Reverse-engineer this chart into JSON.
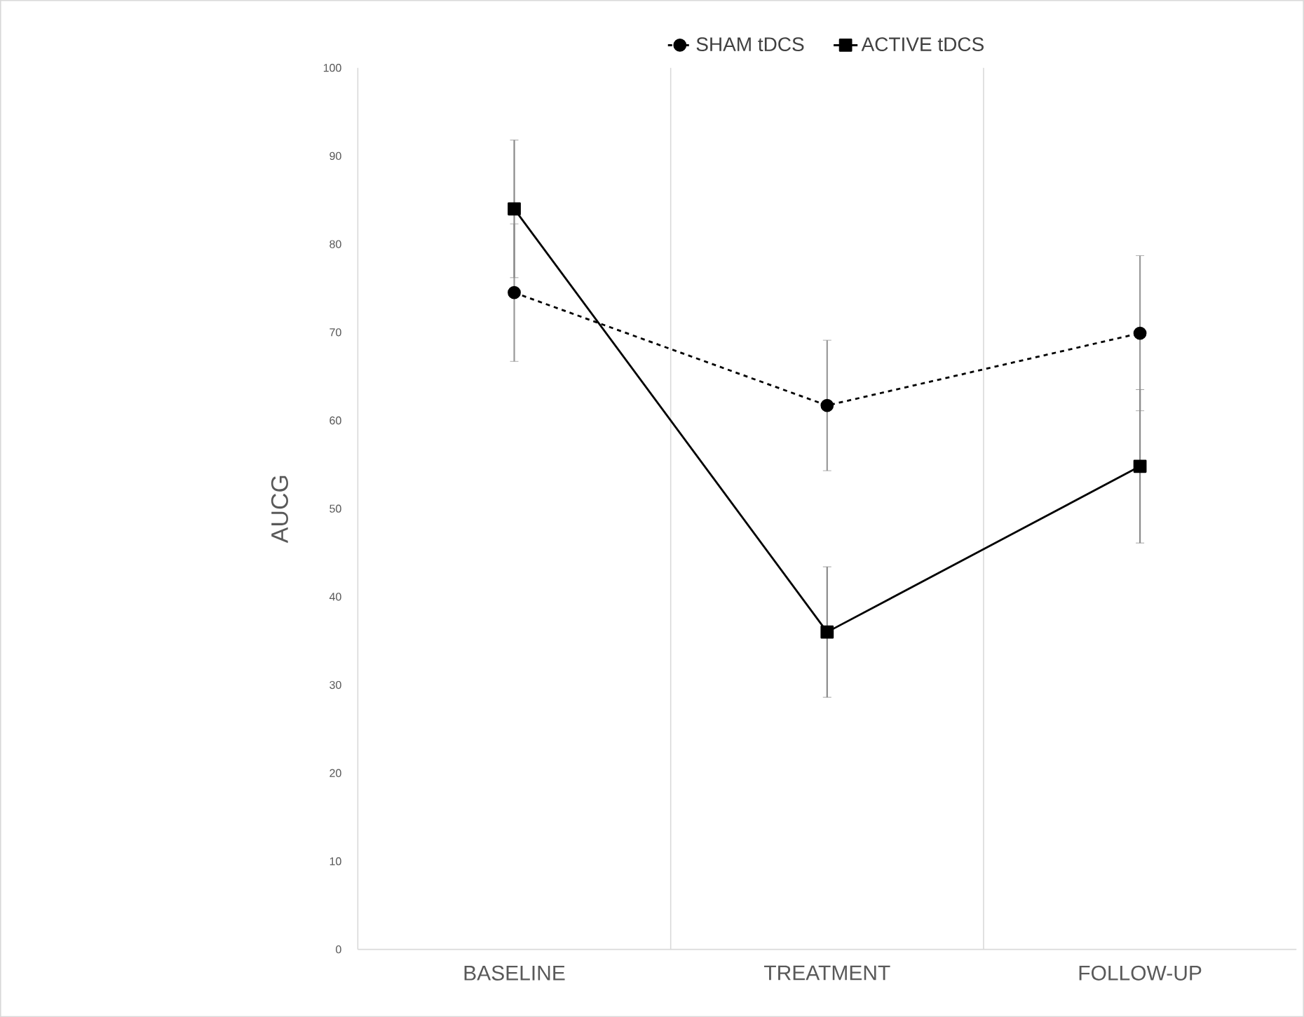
{
  "chart_data": {
    "type": "line",
    "ylabel": "AUCG",
    "categories": [
      "BASELINE",
      "TREATMENT",
      "FOLLOW-UP"
    ],
    "ylim": [
      0,
      100
    ],
    "yticks": [
      0,
      10,
      20,
      30,
      40,
      50,
      60,
      70,
      80,
      90,
      100
    ],
    "grid": "x",
    "legend": "top",
    "series": [
      {
        "name": "SHAM tDCS",
        "color": "#000000",
        "marker": "circle",
        "line_style": "dashed",
        "values": [
          74.5,
          61.7,
          69.9
        ],
        "errors": [
          7.8,
          7.4,
          8.8
        ]
      },
      {
        "name": "ACTIVE tDCS",
        "color": "#000000",
        "marker": "square",
        "line_style": "solid",
        "values": [
          84.0,
          36.0,
          54.8
        ],
        "errors": [
          7.8,
          7.4,
          8.7
        ]
      }
    ]
  }
}
